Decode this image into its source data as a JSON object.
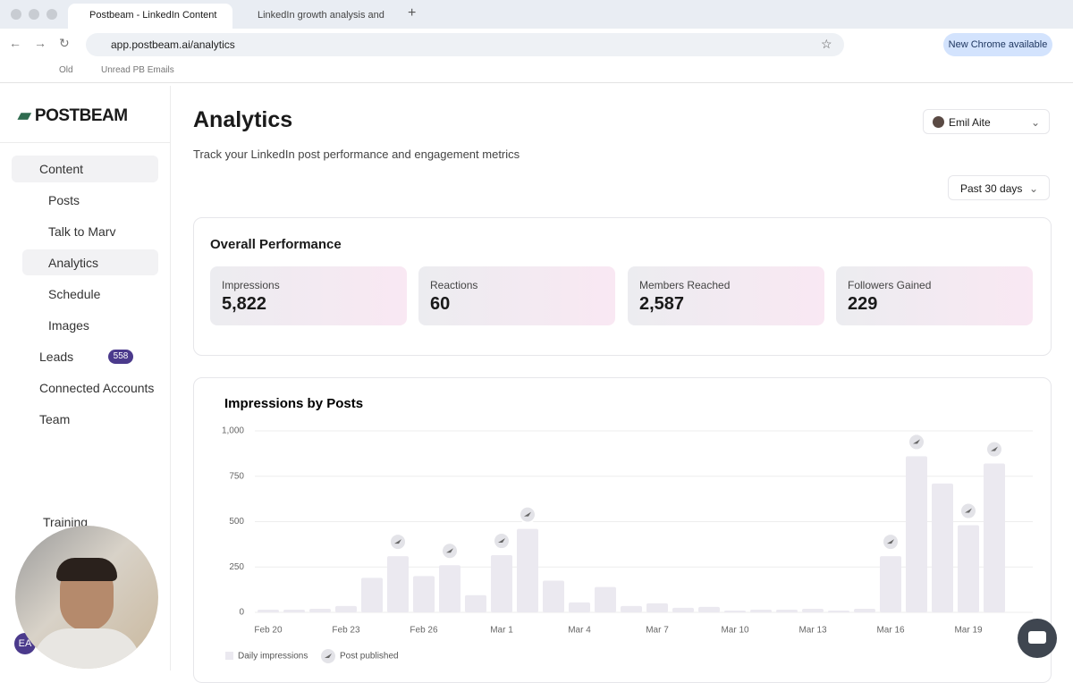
{
  "browser": {
    "tabs": [
      "Postbeam - LinkedIn Content",
      "LinkedIn growth analysis and"
    ],
    "url": "app.postbeam.ai/analytics",
    "bookmarks": [
      "Old",
      "Unread PB Emails"
    ],
    "update_button": "New Chrome available"
  },
  "sidebar": {
    "logo": "POSTBEAM",
    "nav": [
      "Content",
      "Posts",
      "Talk to Marv",
      "Analytics",
      "Schedule",
      "Images",
      "Leads",
      "Connected Accounts",
      "Team",
      "Training"
    ],
    "leads_badge": "558",
    "avatar": "EA"
  },
  "header": {
    "title": "Analytics",
    "subtitle": "Track your LinkedIn post performance and engagement metrics",
    "user": "Emil Aite",
    "period": "Past 30 days"
  },
  "performance": {
    "title": "Overall Performance",
    "metrics": [
      {
        "label": "Impressions",
        "value": "5,822"
      },
      {
        "label": "Reactions",
        "value": "60"
      },
      {
        "label": "Members Reached",
        "value": "2,587"
      },
      {
        "label": "Followers Gained",
        "value": "229"
      }
    ]
  },
  "chart_data": {
    "type": "bar",
    "title": "Impressions by Posts",
    "categories": [
      "Feb 20",
      null,
      null,
      "Feb 23",
      null,
      null,
      "Feb 26",
      null,
      null,
      "Mar 1",
      null,
      null,
      "Mar 4",
      null,
      null,
      "Mar 7",
      null,
      null,
      "Mar 10",
      null,
      null,
      "Mar 13",
      null,
      null,
      "Mar 16",
      null,
      null,
      "Mar 19",
      null
    ],
    "series": [
      {
        "name": "Daily impressions",
        "color": "#ebe9f0",
        "values": [
          15,
          15,
          20,
          35,
          190,
          310,
          200,
          260,
          95,
          315,
          460,
          175,
          55,
          140,
          35,
          50,
          25,
          30,
          10,
          15,
          15,
          20,
          10,
          20,
          310,
          860,
          710,
          480,
          820
        ]
      }
    ],
    "markers": {
      "name": "Post published",
      "published": [
        false,
        false,
        false,
        false,
        false,
        true,
        false,
        true,
        false,
        true,
        true,
        false,
        false,
        false,
        false,
        false,
        false,
        false,
        false,
        false,
        false,
        false,
        false,
        false,
        true,
        true,
        false,
        true,
        true
      ]
    },
    "ylim": [
      0,
      1000
    ],
    "yticks": [
      0,
      250,
      500,
      750,
      {
        "value": 1000,
        "label": "1,000"
      }
    ],
    "grid": true
  }
}
